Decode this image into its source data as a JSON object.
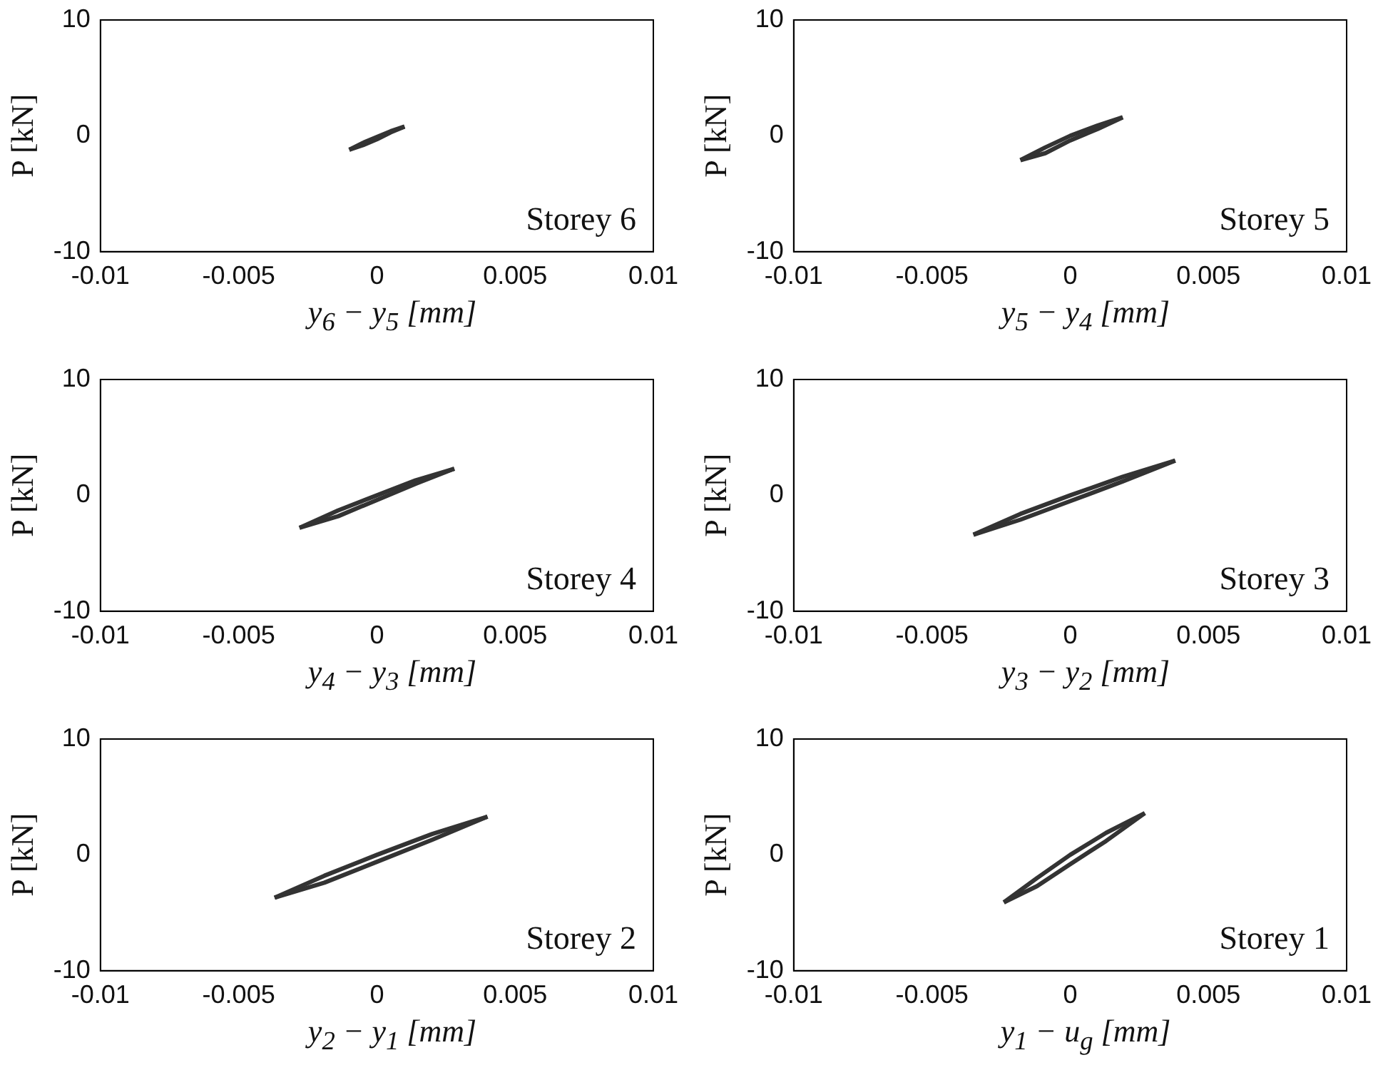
{
  "chart_data": [
    {
      "type": "line",
      "xlabel": "y$_{6}$ − y$_{5}$ [mm]",
      "ylabel": "P [kN]",
      "annotations": [
        "Storey 6"
      ],
      "xlim": [
        -0.01,
        0.01
      ],
      "xticks": [
        -0.01,
        -0.005,
        0,
        0.005,
        0.01
      ],
      "ylim": [
        -10,
        10
      ],
      "yticks": [
        -10,
        0,
        10
      ],
      "grid": false,
      "legend": false,
      "marker": "none",
      "series": [
        {
          "color": "#333333",
          "x": [
            -0.001,
            -0.0005,
            0,
            0.0005,
            0.001
          ],
          "values": [
            -1.2,
            -0.6,
            -0.1,
            0.4,
            0.8
          ]
        },
        {
          "color": "#333333",
          "x": [
            -0.001,
            -0.0005,
            0,
            0.0005,
            0.001
          ],
          "values": [
            -1.2,
            -0.8,
            -0.3,
            0.3,
            0.8
          ]
        }
      ]
    },
    {
      "type": "line",
      "xlabel": "y$_{5}$ − y$_{4}$ [mm]",
      "ylabel": "P [kN]",
      "annotations": [
        "Storey 5"
      ],
      "xlim": [
        -0.01,
        0.01
      ],
      "xticks": [
        -0.01,
        -0.005,
        0,
        0.005,
        0.01
      ],
      "ylim": [
        -10,
        10
      ],
      "yticks": [
        -10,
        0,
        10
      ],
      "grid": false,
      "legend": false,
      "marker": "none",
      "series": [
        {
          "color": "#333333",
          "x": [
            -0.0018,
            -0.0009,
            0,
            0.001,
            0.0019
          ],
          "values": [
            -2.1,
            -1.0,
            0,
            0.9,
            1.6
          ]
        },
        {
          "color": "#333333",
          "x": [
            -0.0018,
            -0.0009,
            0,
            0.001,
            0.0019
          ],
          "values": [
            -2.1,
            -1.5,
            -0.4,
            0.6,
            1.6
          ]
        }
      ]
    },
    {
      "type": "line",
      "xlabel": "y$_{4}$ − y$_{3}$ [mm]",
      "ylabel": "P [kN]",
      "annotations": [
        "Storey 4"
      ],
      "xlim": [
        -0.01,
        0.01
      ],
      "xticks": [
        -0.01,
        -0.005,
        0,
        0.005,
        0.01
      ],
      "ylim": [
        -10,
        10
      ],
      "yticks": [
        -10,
        0,
        10
      ],
      "grid": false,
      "legend": false,
      "marker": "none",
      "series": [
        {
          "color": "#333333",
          "x": [
            -0.0028,
            -0.0014,
            0,
            0.0014,
            0.0028
          ],
          "values": [
            -2.8,
            -1.3,
            0,
            1.3,
            2.3
          ]
        },
        {
          "color": "#333333",
          "x": [
            -0.0028,
            -0.0014,
            0,
            0.0014,
            0.0028
          ],
          "values": [
            -2.8,
            -1.8,
            -0.4,
            1.0,
            2.3
          ]
        }
      ]
    },
    {
      "type": "line",
      "xlabel": "y$_{3}$ − y$_{2}$ [mm]",
      "ylabel": "P [kN]",
      "annotations": [
        "Storey 3"
      ],
      "xlim": [
        -0.01,
        0.01
      ],
      "xticks": [
        -0.01,
        -0.005,
        0,
        0.005,
        0.01
      ],
      "ylim": [
        -10,
        10
      ],
      "yticks": [
        -10,
        0,
        10
      ],
      "grid": false,
      "legend": false,
      "marker": "none",
      "series": [
        {
          "color": "#333333",
          "x": [
            -0.0035,
            -0.0018,
            0,
            0.0019,
            0.0038
          ],
          "values": [
            -3.4,
            -1.6,
            0,
            1.6,
            3.0
          ]
        },
        {
          "color": "#333333",
          "x": [
            -0.0035,
            -0.0018,
            0,
            0.0019,
            0.0038
          ],
          "values": [
            -3.4,
            -2.1,
            -0.5,
            1.2,
            3.0
          ]
        }
      ]
    },
    {
      "type": "line",
      "xlabel": "y$_{2}$ − y$_{1}$ [mm]",
      "ylabel": "P [kN]",
      "annotations": [
        "Storey 2"
      ],
      "xlim": [
        -0.01,
        0.01
      ],
      "xticks": [
        -0.01,
        -0.005,
        0,
        0.005,
        0.01
      ],
      "ylim": [
        -10,
        10
      ],
      "yticks": [
        -10,
        0,
        10
      ],
      "grid": false,
      "legend": false,
      "marker": "none",
      "series": [
        {
          "color": "#333333",
          "x": [
            -0.0037,
            -0.0019,
            0,
            0.002,
            0.004
          ],
          "values": [
            -3.7,
            -1.8,
            0,
            1.8,
            3.3
          ]
        },
        {
          "color": "#333333",
          "x": [
            -0.0037,
            -0.0019,
            0,
            0.002,
            0.004
          ],
          "values": [
            -3.7,
            -2.4,
            -0.6,
            1.3,
            3.3
          ]
        }
      ]
    },
    {
      "type": "line",
      "xlabel": "y$_{1}$ − u$_{g}$ [mm]",
      "ylabel": "P [kN]",
      "annotations": [
        "Storey 1"
      ],
      "xlim": [
        -0.01,
        0.01
      ],
      "xticks": [
        -0.01,
        -0.005,
        0,
        0.005,
        0.01
      ],
      "ylim": [
        -10,
        10
      ],
      "yticks": [
        -10,
        0,
        10
      ],
      "grid": false,
      "legend": false,
      "marker": "none",
      "series": [
        {
          "color": "#333333",
          "x": [
            -0.0024,
            -0.0012,
            0,
            0.0013,
            0.0027
          ],
          "values": [
            -4.1,
            -2.0,
            0,
            1.9,
            3.6
          ]
        },
        {
          "color": "#333333",
          "x": [
            -0.0024,
            -0.0012,
            0,
            0.0013,
            0.0027
          ],
          "values": [
            -4.1,
            -2.7,
            -0.8,
            1.2,
            3.6
          ]
        }
      ]
    }
  ]
}
